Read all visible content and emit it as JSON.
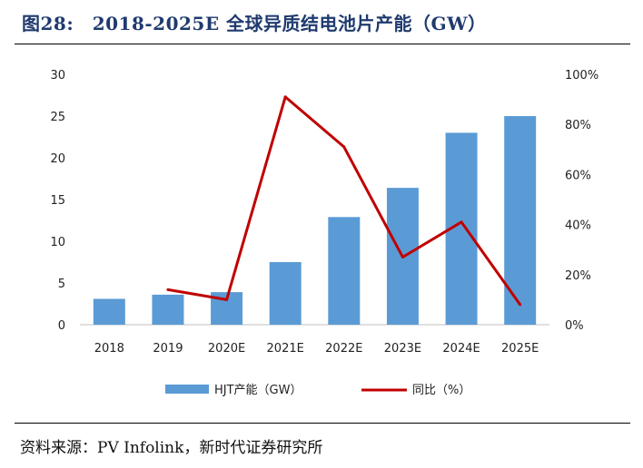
{
  "title": "图28:　2018-2025E 全球异质结电池片产能（GW）",
  "source": "资料来源：PV Infolink，新时代证券研究所",
  "chart_data": {
    "type": "bar",
    "categories": [
      "2018",
      "2019",
      "2020E",
      "2021E",
      "2022E",
      "2023E",
      "2024E",
      "2025E"
    ],
    "series": [
      {
        "name": "HJT产能（GW）",
        "kind": "bar",
        "axis": "left",
        "color": "#5b9bd5",
        "values": [
          3.1,
          3.6,
          3.9,
          7.5,
          12.9,
          16.4,
          23.0,
          25.0
        ]
      },
      {
        "name": "同比（%）",
        "kind": "line",
        "axis": "right",
        "color": "#c00000",
        "values": [
          null,
          14,
          10,
          91,
          71,
          27,
          41,
          8
        ]
      }
    ],
    "y_left": {
      "min": 0,
      "max": 30,
      "ticks": [
        "0",
        "5",
        "10",
        "15",
        "20",
        "25",
        "30"
      ]
    },
    "y_right": {
      "min": 0,
      "max": 100,
      "ticks": [
        "0%",
        "20%",
        "40%",
        "60%",
        "80%",
        "100%"
      ]
    },
    "grid": false,
    "legend": "bottom"
  }
}
